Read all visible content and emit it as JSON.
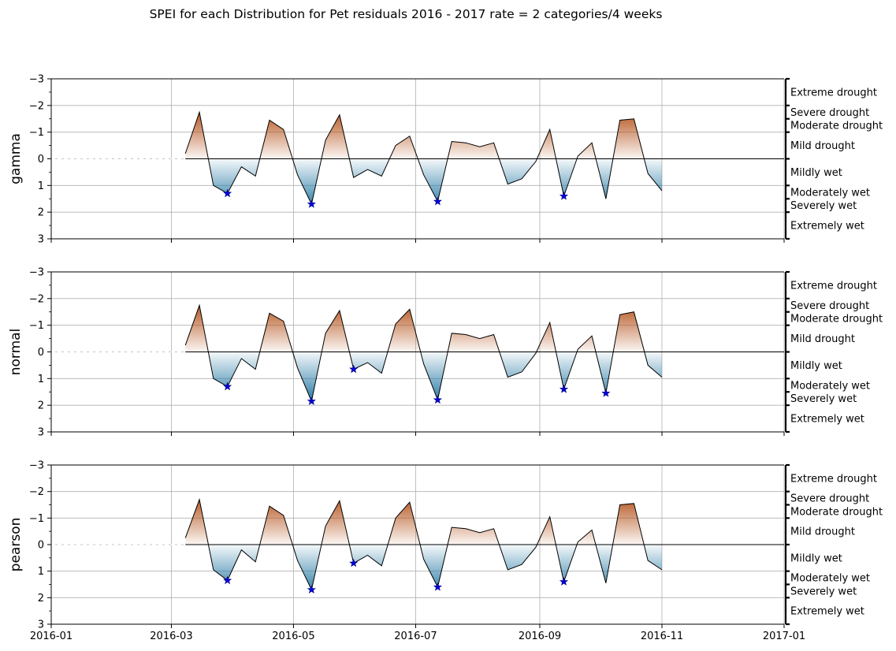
{
  "chart_data": {
    "type": "area",
    "title": "SPEI for each Distribution for Pet residuals 2016 - 2017 rate = 2 categories/4 weeks",
    "x_axis": {
      "start": "2016-01-01",
      "end": "2017-01-01",
      "tick_labels": [
        "2016-01",
        "2016-03",
        "2016-05",
        "2016-07",
        "2016-09",
        "2016-11",
        "2017-01"
      ],
      "tick_dates": [
        "2016-01-01",
        "2016-03-01",
        "2016-05-01",
        "2016-07-01",
        "2016-09-01",
        "2016-11-01",
        "2017-01-01"
      ]
    },
    "y_axis": {
      "inverted": true,
      "ylim": [
        -3,
        3
      ],
      "tick_labels": [
        "−3",
        "−2",
        "−1",
        "0",
        "1",
        "2",
        "3"
      ],
      "tick_values": [
        -3,
        -2,
        -1,
        0,
        1,
        2,
        3
      ]
    },
    "grid": true,
    "colors": {
      "dry": "#b5551f",
      "wet": "#2f7fa8",
      "line": "#000000",
      "marker": "#0000dd"
    },
    "categories": [
      {
        "label": "Extreme drought",
        "range": [
          -3,
          -2
        ]
      },
      {
        "label": "Severe drought",
        "range": [
          -2,
          -1.5
        ]
      },
      {
        "label": "Moderate drought",
        "range": [
          -1.5,
          -1
        ]
      },
      {
        "label": "Mild drought",
        "range": [
          -1,
          0
        ]
      },
      {
        "label": "Mildly wet",
        "range": [
          0,
          1
        ]
      },
      {
        "label": "Moderately wet",
        "range": [
          1,
          1.5
        ]
      },
      {
        "label": "Severely wet",
        "range": [
          1.5,
          2
        ]
      },
      {
        "label": "Extremely wet",
        "range": [
          2,
          3
        ]
      }
    ],
    "dates": [
      "2016-03-08",
      "2016-03-15",
      "2016-03-22",
      "2016-03-29",
      "2016-04-05",
      "2016-04-12",
      "2016-04-19",
      "2016-04-26",
      "2016-05-03",
      "2016-05-10",
      "2016-05-17",
      "2016-05-24",
      "2016-05-31",
      "2016-06-07",
      "2016-06-14",
      "2016-06-21",
      "2016-06-28",
      "2016-07-05",
      "2016-07-12",
      "2016-07-19",
      "2016-07-26",
      "2016-08-02",
      "2016-08-09",
      "2016-08-16",
      "2016-08-23",
      "2016-08-30",
      "2016-09-06",
      "2016-09-13",
      "2016-09-20",
      "2016-09-27",
      "2016-10-04",
      "2016-10-11",
      "2016-10-18",
      "2016-10-25",
      "2016-11-01"
    ],
    "series": [
      {
        "name": "gamma",
        "values": [
          -0.2,
          -1.75,
          1.0,
          1.3,
          0.3,
          0.65,
          -1.45,
          -1.1,
          0.6,
          1.7,
          -0.7,
          -1.65,
          0.7,
          0.4,
          0.65,
          -0.5,
          -0.85,
          0.6,
          1.6,
          -0.65,
          -0.6,
          -0.45,
          -0.6,
          0.95,
          0.75,
          0.1,
          -1.1,
          1.4,
          -0.1,
          -0.6,
          1.5,
          -1.45,
          -1.5,
          0.55,
          1.2
        ],
        "markers": [
          {
            "date": "2016-03-29",
            "value": 1.3
          },
          {
            "date": "2016-05-10",
            "value": 1.7
          },
          {
            "date": "2016-07-12",
            "value": 1.6
          },
          {
            "date": "2016-09-13",
            "value": 1.4
          }
        ]
      },
      {
        "name": "normal",
        "values": [
          -0.25,
          -1.75,
          1.0,
          1.3,
          0.25,
          0.65,
          -1.45,
          -1.15,
          0.6,
          1.85,
          -0.7,
          -1.55,
          0.65,
          0.4,
          0.8,
          -1.05,
          -1.6,
          0.45,
          1.8,
          -0.7,
          -0.65,
          -0.5,
          -0.65,
          0.95,
          0.75,
          0.05,
          -1.1,
          1.4,
          -0.1,
          -0.6,
          1.55,
          -1.4,
          -1.5,
          0.5,
          0.95
        ],
        "markers": [
          {
            "date": "2016-03-29",
            "value": 1.3
          },
          {
            "date": "2016-05-10",
            "value": 1.85
          },
          {
            "date": "2016-05-31",
            "value": 0.65
          },
          {
            "date": "2016-07-12",
            "value": 1.8
          },
          {
            "date": "2016-09-13",
            "value": 1.4
          },
          {
            "date": "2016-10-04",
            "value": 1.55
          }
        ]
      },
      {
        "name": "pearson",
        "values": [
          -0.25,
          -1.7,
          0.95,
          1.35,
          0.2,
          0.65,
          -1.45,
          -1.1,
          0.6,
          1.7,
          -0.7,
          -1.65,
          0.7,
          0.4,
          0.8,
          -1.0,
          -1.6,
          0.55,
          1.6,
          -0.65,
          -0.6,
          -0.45,
          -0.6,
          0.95,
          0.75,
          0.1,
          -1.05,
          1.4,
          -0.1,
          -0.55,
          1.45,
          -1.5,
          -1.55,
          0.6,
          0.95
        ],
        "markers": [
          {
            "date": "2016-03-29",
            "value": 1.35
          },
          {
            "date": "2016-05-10",
            "value": 1.7
          },
          {
            "date": "2016-05-31",
            "value": 0.7
          },
          {
            "date": "2016-07-12",
            "value": 1.6
          },
          {
            "date": "2016-09-13",
            "value": 1.4
          }
        ]
      }
    ]
  }
}
